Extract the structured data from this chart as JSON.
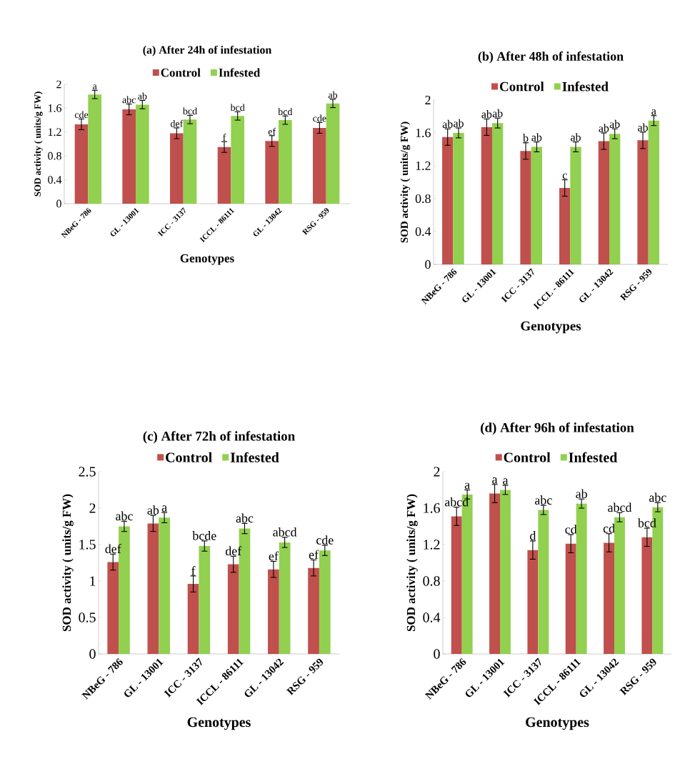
{
  "chart_data": [
    {
      "type": "bar",
      "title": "(a) After 24h of infestation",
      "xlabel": "Genotypes",
      "ylabel": "SOD activity ( units/g FW)",
      "categories": [
        "NBeG - 786",
        "GL - 13001",
        "ICC - 3137",
        "ICCL - 86111",
        "GL - 13042",
        "RSG - 959"
      ],
      "ylim": [
        0,
        2
      ],
      "yticks": [
        0,
        0.4,
        0.8,
        1.2,
        1.6,
        2
      ],
      "legend": "top",
      "series": [
        {
          "name": "Control",
          "color": "#c0504d",
          "values": [
            1.33,
            1.58,
            1.18,
            0.95,
            1.05,
            1.27
          ],
          "errors": [
            0.09,
            0.09,
            0.09,
            0.09,
            0.09,
            0.09
          ],
          "value_labels": [
            "cde",
            "abc",
            "def",
            "f",
            "ef",
            "cde"
          ]
        },
        {
          "name": "Infested",
          "color": "#92d050",
          "values": [
            1.83,
            1.66,
            1.41,
            1.47,
            1.4,
            1.68
          ],
          "errors": [
            0.07,
            0.07,
            0.07,
            0.07,
            0.07,
            0.07
          ],
          "value_labels": [
            "a",
            "ab",
            "bcd",
            "bcd",
            "bcd",
            "ab"
          ]
        }
      ]
    },
    {
      "type": "bar",
      "title": "(b) After 48h of infestation",
      "xlabel": "Genotypes",
      "ylabel": "SOD activity ( units/g FW)",
      "categories": [
        "NBeG - 786",
        "GL - 13001",
        "ICC - 3137",
        "ICCL - 86111",
        "GL - 13042",
        "RSG - 959"
      ],
      "ylim": [
        0,
        2
      ],
      "yticks": [
        0,
        0.4,
        0.8,
        1.2,
        1.6,
        2
      ],
      "legend": "top",
      "series": [
        {
          "name": "Control",
          "color": "#c0504d",
          "values": [
            1.55,
            1.67,
            1.38,
            0.93,
            1.5,
            1.51
          ],
          "errors": [
            0.1,
            0.1,
            0.1,
            0.1,
            0.1,
            0.1
          ],
          "value_labels": [
            "ab",
            "ab",
            "b",
            "c",
            "ab",
            "ab"
          ]
        },
        {
          "name": "Infested",
          "color": "#92d050",
          "values": [
            1.6,
            1.72,
            1.43,
            1.43,
            1.59,
            1.75
          ],
          "errors": [
            0.06,
            0.06,
            0.06,
            0.06,
            0.06,
            0.06
          ],
          "value_labels": [
            "ab",
            "ab",
            "ab",
            "ab",
            "ab",
            "a"
          ]
        }
      ]
    },
    {
      "type": "bar",
      "title": "(c) After 72h of infestation",
      "xlabel": "Genotypes",
      "ylabel": "SOD activity ( units/g FW)",
      "categories": [
        "NBeG - 786",
        "GL - 13001",
        "ICC - 3137",
        "ICCL - 86111",
        "GL - 13042",
        "RSG - 959"
      ],
      "ylim": [
        0,
        2.5
      ],
      "yticks": [
        0,
        0.5,
        1,
        1.5,
        2,
        2.5
      ],
      "legend": "top",
      "series": [
        {
          "name": "Control",
          "color": "#c0504d",
          "values": [
            1.26,
            1.79,
            0.96,
            1.23,
            1.16,
            1.18
          ],
          "errors": [
            0.11,
            0.11,
            0.11,
            0.11,
            0.11,
            0.11
          ],
          "value_labels": [
            "def",
            "ab",
            "f",
            "def",
            "ef",
            "ef"
          ]
        },
        {
          "name": "Infested",
          "color": "#92d050",
          "values": [
            1.75,
            1.87,
            1.48,
            1.72,
            1.53,
            1.42
          ],
          "errors": [
            0.07,
            0.07,
            0.07,
            0.07,
            0.07,
            0.07
          ],
          "value_labels": [
            "abc",
            "a",
            "bcde",
            "abc",
            "abcd",
            "cde"
          ]
        }
      ]
    },
    {
      "type": "bar",
      "title": "(d) After 96h of infestation",
      "xlabel": "Genotypes",
      "ylabel": "SOD activity ( units/g FW)",
      "categories": [
        "NBeG - 786",
        "GL - 13001",
        "ICC - 3137",
        "ICCL - 86111",
        "GL - 13042",
        "RSG - 959"
      ],
      "ylim": [
        0,
        2
      ],
      "yticks": [
        0,
        0.4,
        0.8,
        1.2,
        1.6,
        2
      ],
      "legend": "top",
      "series": [
        {
          "name": "Control",
          "color": "#c0504d",
          "values": [
            1.51,
            1.76,
            1.14,
            1.21,
            1.22,
            1.28
          ],
          "errors": [
            0.1,
            0.1,
            0.1,
            0.1,
            0.1,
            0.1
          ],
          "value_labels": [
            "abcd",
            "a",
            "d",
            "cd",
            "cd",
            "bcd"
          ]
        },
        {
          "name": "Infested",
          "color": "#92d050",
          "values": [
            1.75,
            1.8,
            1.58,
            1.65,
            1.5,
            1.61
          ],
          "errors": [
            0.05,
            0.05,
            0.05,
            0.05,
            0.05,
            0.05
          ],
          "value_labels": [
            "a",
            "a",
            "abc",
            "ab",
            "abcd",
            "abc"
          ]
        }
      ]
    }
  ]
}
